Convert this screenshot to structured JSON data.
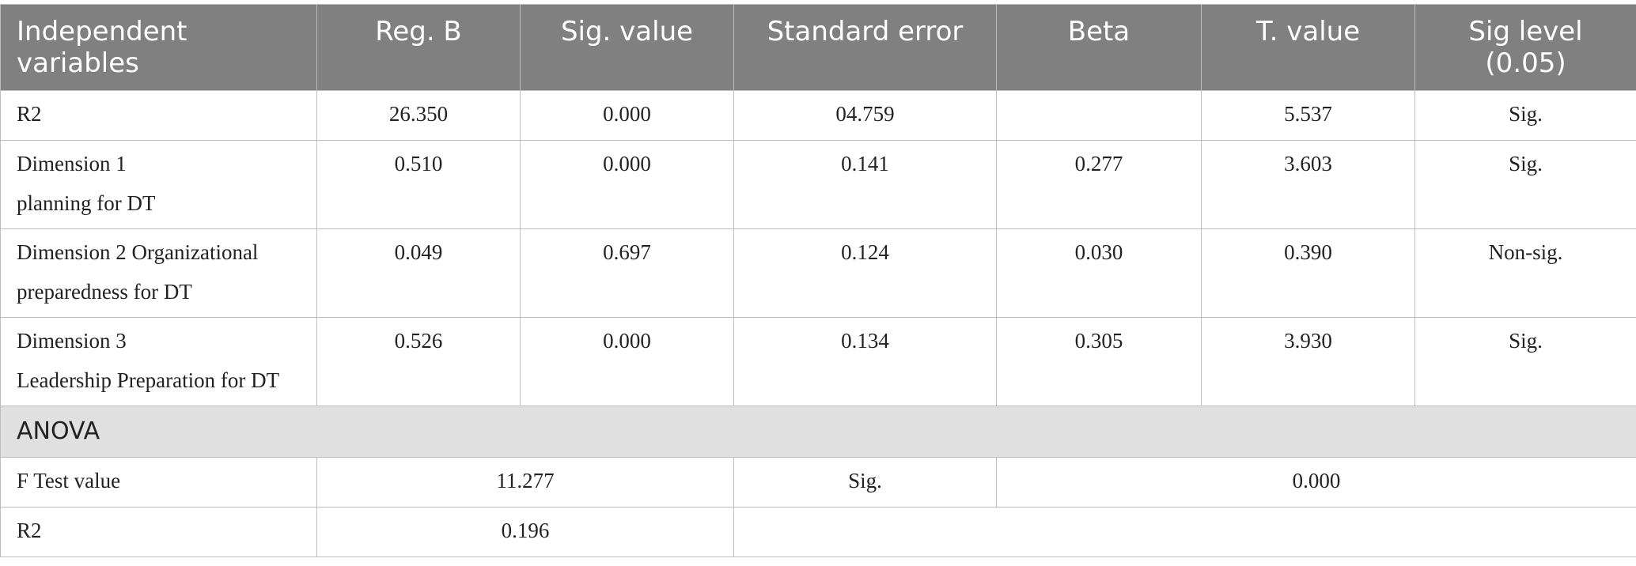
{
  "table": {
    "header": [
      [
        "Independent",
        "variables"
      ],
      "Reg. B",
      "Sig. value",
      "Standard error",
      "Beta",
      "T. value",
      [
        "Sig level",
        "(0.05)"
      ]
    ],
    "rows": [
      [
        "R2",
        "26.350",
        "0.000",
        "04.759",
        null,
        "5.537",
        "Sig."
      ],
      [
        [
          "Dimension 1",
          "planning for DT"
        ],
        "0.510",
        "0.000",
        "0.141",
        "0.277",
        "3.603",
        "Sig."
      ],
      [
        [
          "Dimension 2 Organizational",
          "preparedness for DT"
        ],
        "0.049",
        "0.697",
        "0.124",
        "0.030",
        "0.390",
        "Non-sig."
      ],
      [
        [
          "Dimension 3",
          "Leadership Preparation for DT"
        ],
        "0.526",
        "0.000",
        "0.134",
        "0.305",
        "3.930",
        "Sig."
      ]
    ],
    "section": "ANOVA",
    "anova_rows": [
      [
        "F Test value",
        "11.277",
        "Sig.",
        "0.000"
      ],
      [
        "R2",
        "0.196"
      ]
    ]
  }
}
